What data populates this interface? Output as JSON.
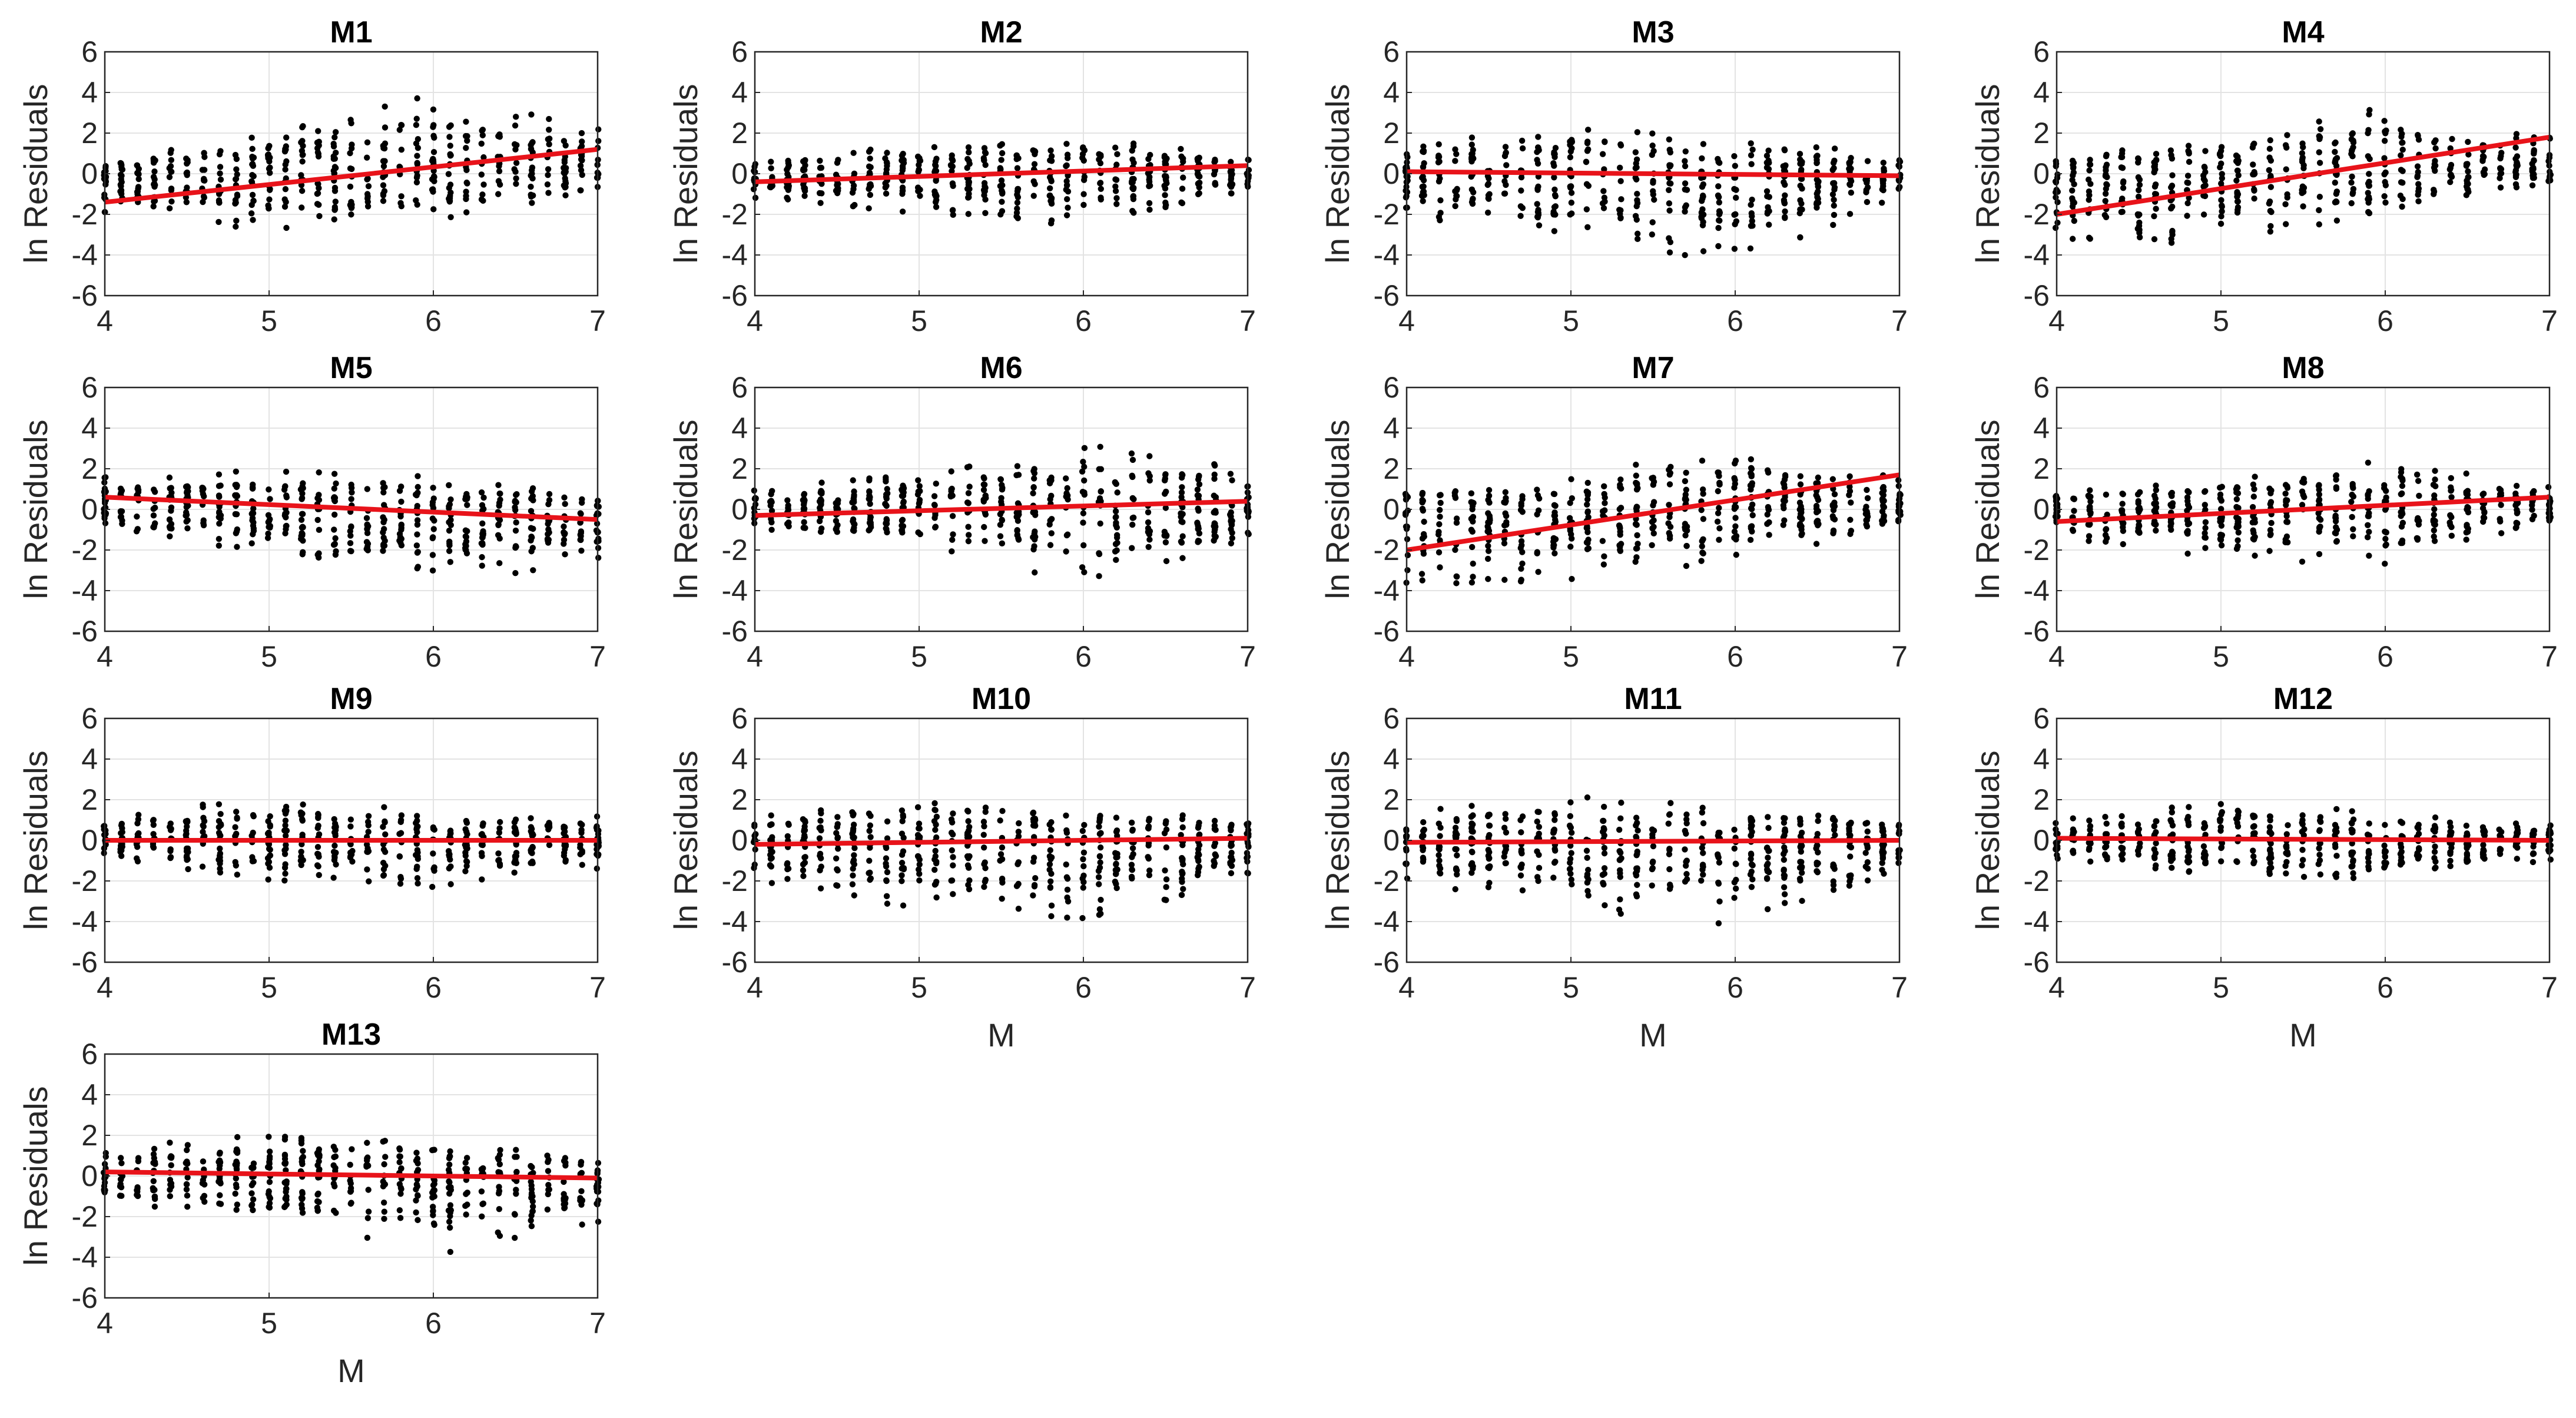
{
  "figure": {
    "background": "#ffffff",
    "line_color": "#e8131a",
    "point_color": "#000000",
    "grid_color": "#e3e3e3",
    "box_color": "#262626"
  },
  "chart_data": [
    {
      "type": "scatter",
      "title": "M1",
      "xlabel": "",
      "ylabel": "ln Residuals",
      "xlim": [
        4,
        7
      ],
      "ylim": [
        -6,
        6
      ],
      "xticks": [
        "4",
        "5",
        "6",
        "7"
      ],
      "yticks": [
        "-6",
        "-4",
        "-2",
        "0",
        "2",
        "4",
        "6"
      ],
      "fit_line": {
        "x": [
          4,
          7
        ],
        "y": [
          -1.4,
          1.2
        ]
      },
      "spread_profile": [
        [
          4.0,
          -2.2,
          0.6
        ],
        [
          5.0,
          -2.8,
          2.1
        ],
        [
          6.0,
          -2.5,
          4.2
        ],
        [
          7.0,
          -1.0,
          2.2
        ]
      ],
      "grid": true
    },
    {
      "type": "scatter",
      "title": "M2",
      "xlabel": "",
      "ylabel": "ln Residuals",
      "xlim": [
        4,
        7
      ],
      "ylim": [
        -6,
        6
      ],
      "xticks": [
        "4",
        "5",
        "6",
        "7"
      ],
      "yticks": [
        "-6",
        "-4",
        "-2",
        "0",
        "2",
        "4",
        "6"
      ],
      "fit_line": {
        "x": [
          4,
          7
        ],
        "y": [
          -0.4,
          0.4
        ]
      },
      "spread_profile": [
        [
          4.0,
          -1.2,
          0.9
        ],
        [
          5.0,
          -2.0,
          1.4
        ],
        [
          6.0,
          -2.6,
          1.9
        ],
        [
          7.0,
          -0.8,
          0.9
        ]
      ],
      "grid": true
    },
    {
      "type": "scatter",
      "title": "M3",
      "xlabel": "",
      "ylabel": "ln Residuals",
      "xlim": [
        4,
        7
      ],
      "ylim": [
        -6,
        6
      ],
      "xticks": [
        "4",
        "5",
        "6",
        "7"
      ],
      "yticks": [
        "-6",
        "-4",
        "-2",
        "0",
        "2",
        "4",
        "6"
      ],
      "fit_line": {
        "x": [
          4,
          7
        ],
        "y": [
          0.1,
          -0.1
        ]
      },
      "spread_profile": [
        [
          4.0,
          -2.0,
          1.6
        ],
        [
          5.0,
          -3.5,
          2.4
        ],
        [
          6.0,
          -4.6,
          1.6
        ],
        [
          7.0,
          -1.2,
          1.0
        ]
      ],
      "grid": true
    },
    {
      "type": "scatter",
      "title": "M4",
      "xlabel": "",
      "ylabel": "ln Residuals",
      "xlim": [
        4,
        7
      ],
      "ylim": [
        -6,
        6
      ],
      "xticks": [
        "4",
        "5",
        "6",
        "7"
      ],
      "yticks": [
        "-6",
        "-4",
        "-2",
        "0",
        "2",
        "4",
        "6"
      ],
      "fit_line": {
        "x": [
          4,
          7
        ],
        "y": [
          -2.0,
          1.8
        ]
      },
      "spread_profile": [
        [
          4.0,
          -3.6,
          0.8
        ],
        [
          5.0,
          -3.5,
          1.8
        ],
        [
          6.0,
          -2.0,
          3.4
        ],
        [
          7.0,
          -0.6,
          1.8
        ]
      ],
      "grid": true
    },
    {
      "type": "scatter",
      "title": "M5",
      "xlabel": "",
      "ylabel": "ln Residuals",
      "xlim": [
        4,
        7
      ],
      "ylim": [
        -6,
        6
      ],
      "xticks": [
        "4",
        "5",
        "6",
        "7"
      ],
      "yticks": [
        "-6",
        "-4",
        "-2",
        "0",
        "2",
        "4",
        "6"
      ],
      "fit_line": {
        "x": [
          4,
          7
        ],
        "y": [
          0.6,
          -0.5
        ]
      },
      "spread_profile": [
        [
          4.0,
          -1.0,
          1.8
        ],
        [
          5.0,
          -2.2,
          1.9
        ],
        [
          6.0,
          -3.9,
          1.8
        ],
        [
          7.0,
          -2.6,
          0.8
        ]
      ],
      "grid": true
    },
    {
      "type": "scatter",
      "title": "M6",
      "xlabel": "",
      "ylabel": "ln Residuals",
      "xlim": [
        4,
        7
      ],
      "ylim": [
        -6,
        6
      ],
      "xticks": [
        "4",
        "5",
        "6",
        "7"
      ],
      "yticks": [
        "-6",
        "-4",
        "-2",
        "0",
        "2",
        "4",
        "6"
      ],
      "fit_line": {
        "x": [
          4,
          7
        ],
        "y": [
          -0.3,
          0.4
        ]
      },
      "spread_profile": [
        [
          4.0,
          -1.2,
          1.0
        ],
        [
          5.0,
          -2.0,
          1.8
        ],
        [
          6.0,
          -3.6,
          3.2
        ],
        [
          7.0,
          -2.0,
          2.2
        ]
      ],
      "grid": true
    },
    {
      "type": "scatter",
      "title": "M7",
      "xlabel": "",
      "ylabel": "ln Residuals",
      "xlim": [
        4,
        7
      ],
      "ylim": [
        -6,
        6
      ],
      "xticks": [
        "4",
        "5",
        "6",
        "7"
      ],
      "yticks": [
        "-6",
        "-4",
        "-2",
        "0",
        "2",
        "4",
        "6"
      ],
      "fit_line": {
        "x": [
          4,
          7
        ],
        "y": [
          -2.0,
          1.7
        ]
      },
      "spread_profile": [
        [
          4.0,
          -3.8,
          0.8
        ],
        [
          5.0,
          -3.5,
          1.6
        ],
        [
          6.0,
          -2.6,
          3.4
        ],
        [
          7.0,
          -0.8,
          1.6
        ]
      ],
      "grid": true
    },
    {
      "type": "scatter",
      "title": "M8",
      "xlabel": "",
      "ylabel": "ln Residuals",
      "xlim": [
        4,
        7
      ],
      "ylim": [
        -6,
        6
      ],
      "xticks": [
        "4",
        "5",
        "6",
        "7"
      ],
      "yticks": [
        "-6",
        "-4",
        "-2",
        "0",
        "2",
        "4",
        "6"
      ],
      "fit_line": {
        "x": [
          4,
          7
        ],
        "y": [
          -0.6,
          0.6
        ]
      },
      "spread_profile": [
        [
          4.0,
          -1.4,
          0.8
        ],
        [
          5.0,
          -2.4,
          1.6
        ],
        [
          6.0,
          -2.8,
          2.6
        ],
        [
          7.0,
          -0.6,
          1.2
        ]
      ],
      "grid": true
    },
    {
      "type": "scatter",
      "title": "M9",
      "xlabel": "",
      "ylabel": "ln Residuals",
      "xlim": [
        4,
        7
      ],
      "ylim": [
        -6,
        6
      ],
      "xticks": [
        "4",
        "5",
        "6",
        "7"
      ],
      "yticks": [
        "-6",
        "-4",
        "-2",
        "0",
        "2",
        "4",
        "6"
      ],
      "fit_line": {
        "x": [
          4,
          7
        ],
        "y": [
          0.0,
          0.0
        ]
      },
      "spread_profile": [
        [
          4.0,
          -1.0,
          1.2
        ],
        [
          5.0,
          -2.0,
          2.4
        ],
        [
          6.0,
          -2.4,
          1.4
        ],
        [
          7.0,
          -1.4,
          1.2
        ]
      ],
      "grid": true
    },
    {
      "type": "scatter",
      "title": "M10",
      "xlabel": "M",
      "ylabel": "ln Residuals",
      "xlim": [
        4,
        7
      ],
      "ylim": [
        -6,
        6
      ],
      "xticks": [
        "4",
        "5",
        "6",
        "7"
      ],
      "yticks": [
        "-6",
        "-4",
        "-2",
        "0",
        "2",
        "4",
        "6"
      ],
      "fit_line": {
        "x": [
          4,
          7
        ],
        "y": [
          -0.2,
          0.1
        ]
      },
      "spread_profile": [
        [
          4.0,
          -2.0,
          1.2
        ],
        [
          5.0,
          -3.5,
          2.2
        ],
        [
          6.0,
          -4.0,
          1.6
        ],
        [
          7.0,
          -2.0,
          1.2
        ]
      ],
      "grid": true
    },
    {
      "type": "scatter",
      "title": "M11",
      "xlabel": "M",
      "ylabel": "ln Residuals",
      "xlim": [
        4,
        7
      ],
      "ylim": [
        -6,
        6
      ],
      "xticks": [
        "4",
        "5",
        "6",
        "7"
      ],
      "yticks": [
        "-6",
        "-4",
        "-2",
        "0",
        "2",
        "4",
        "6"
      ],
      "fit_line": {
        "x": [
          4,
          7
        ],
        "y": [
          -0.1,
          0.0
        ]
      },
      "spread_profile": [
        [
          4.0,
          -2.0,
          1.4
        ],
        [
          5.0,
          -3.5,
          2.2
        ],
        [
          6.0,
          -4.2,
          1.6
        ],
        [
          7.0,
          -1.6,
          1.2
        ]
      ],
      "grid": true
    },
    {
      "type": "scatter",
      "title": "M12",
      "xlabel": "M",
      "ylabel": "ln Residuals",
      "xlim": [
        4,
        7
      ],
      "ylim": [
        -6,
        6
      ],
      "xticks": [
        "4",
        "5",
        "6",
        "7"
      ],
      "yticks": [
        "-6",
        "-4",
        "-2",
        "0",
        "2",
        "4",
        "6"
      ],
      "fit_line": {
        "x": [
          4,
          7
        ],
        "y": [
          0.1,
          0.0
        ]
      },
      "spread_profile": [
        [
          4.0,
          -1.0,
          1.0
        ],
        [
          5.0,
          -1.8,
          2.0
        ],
        [
          6.0,
          -2.2,
          1.4
        ],
        [
          7.0,
          -1.0,
          0.8
        ]
      ],
      "grid": true
    },
    {
      "type": "scatter",
      "title": "M13",
      "xlabel": "M",
      "ylabel": "ln Residuals",
      "xlim": [
        4,
        7
      ],
      "ylim": [
        -6,
        6
      ],
      "xticks": [
        "4",
        "5",
        "6",
        "7"
      ],
      "yticks": [
        "-6",
        "-4",
        "-2",
        "0",
        "2",
        "4",
        "6"
      ],
      "fit_line": {
        "x": [
          4,
          7
        ],
        "y": [
          0.2,
          -0.1
        ]
      },
      "spread_profile": [
        [
          4.0,
          -1.4,
          1.6
        ],
        [
          5.0,
          -2.5,
          2.0
        ],
        [
          6.0,
          -3.9,
          1.8
        ],
        [
          7.0,
          -2.4,
          0.8
        ]
      ],
      "grid": true
    }
  ]
}
